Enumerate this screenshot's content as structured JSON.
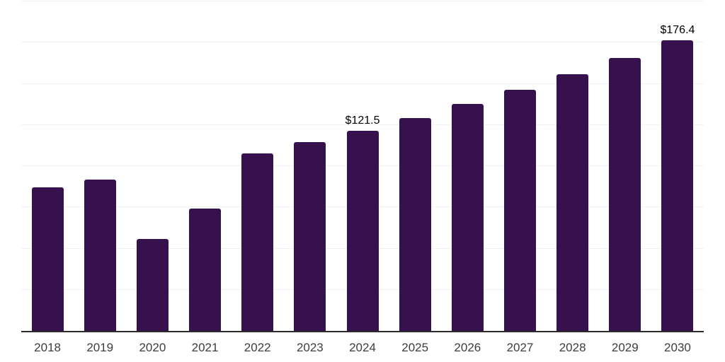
{
  "chart_data": {
    "type": "bar",
    "title": "",
    "categories": [
      "2018",
      "2019",
      "2020",
      "2021",
      "2022",
      "2023",
      "2024",
      "2025",
      "2026",
      "2027",
      "2028",
      "2029",
      "2030"
    ],
    "values": [
      87.3,
      92.0,
      56.0,
      74.4,
      107.8,
      114.7,
      121.5,
      129.3,
      137.6,
      146.4,
      155.8,
      165.8,
      176.4
    ],
    "value_labels": [
      {
        "category": "2024",
        "text": "$121.5"
      },
      {
        "category": "2030",
        "text": "$176.4"
      }
    ],
    "xlabel": "",
    "ylabel": "",
    "ylim": [
      0,
      200
    ],
    "gridline_step": 25,
    "grid": "horizontal gridlines on, no vertical gridlines",
    "legend_position": "none",
    "y_axis_tick_labels": "none",
    "colors": {
      "bar": "#36114D",
      "background": "#ffffff",
      "gridline": "#f1f1f1",
      "axis_line": "#2b2b2b",
      "tick_label": "#3d3d3d",
      "value_label": "#000000"
    }
  }
}
